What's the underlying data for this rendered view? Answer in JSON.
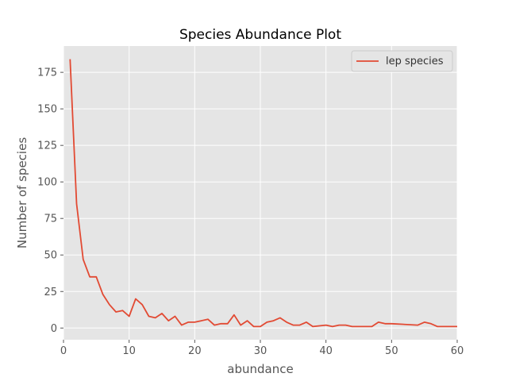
{
  "chart_data": {
    "type": "line",
    "title": "Species Abundance Plot",
    "xlabel": "abundance",
    "ylabel": "Number of species",
    "xlim": [
      0,
      60
    ],
    "ylim": [
      -8,
      193
    ],
    "xticks": [
      0,
      10,
      20,
      30,
      40,
      50,
      60
    ],
    "yticks": [
      0,
      25,
      50,
      75,
      100,
      125,
      150,
      175
    ],
    "grid": true,
    "legend_position": "top-right",
    "series": [
      {
        "name": "lep species",
        "color": "#e24a33",
        "x": [
          1,
          2,
          3,
          4,
          5,
          6,
          7,
          8,
          9,
          10,
          11,
          12,
          13,
          14,
          15,
          16,
          17,
          18,
          19,
          20,
          21,
          22,
          23,
          24,
          25,
          26,
          27,
          28,
          29,
          30,
          31,
          32,
          33,
          34,
          35,
          36,
          37,
          38,
          39,
          40,
          41,
          42,
          43,
          44,
          45,
          46,
          47,
          48,
          49,
          50,
          54,
          55,
          56,
          57,
          58,
          59,
          60
        ],
        "y": [
          184,
          85,
          47,
          35,
          35,
          23,
          16,
          11,
          12,
          8,
          20,
          16,
          8,
          7,
          10,
          5,
          8,
          2,
          4,
          4,
          5,
          6,
          2,
          3,
          3,
          9,
          2,
          5,
          1,
          1,
          4,
          5,
          7,
          4,
          2,
          2,
          4,
          1,
          1.5,
          2,
          1,
          2,
          2,
          1,
          1,
          1,
          1,
          4,
          3,
          3,
          2,
          4,
          3,
          1,
          1,
          1,
          1
        ]
      }
    ]
  }
}
